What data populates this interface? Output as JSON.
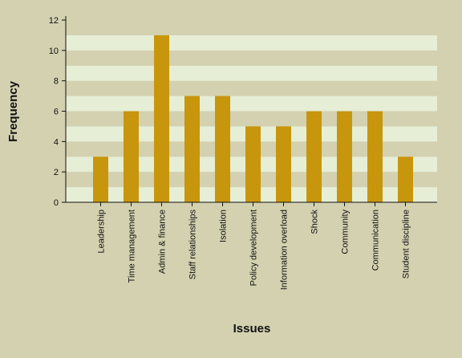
{
  "chart_data": {
    "type": "bar",
    "xlabel": "Issues",
    "ylabel": "Frequency",
    "categories": [
      "Leadership",
      "Time management",
      "Admin & finance",
      "Staff relationships",
      "Isolation",
      "Policy development",
      "Information overload",
      "Shock",
      "Community",
      "Communication",
      "Student discipline"
    ],
    "values": [
      3,
      6,
      11,
      7,
      7,
      5,
      5,
      6,
      6,
      6,
      3
    ],
    "ylim": [
      0,
      12
    ],
    "yticks": [
      0,
      2,
      4,
      6,
      8,
      10,
      12
    ],
    "grid": "horizontal bands",
    "legend": "none",
    "colors": {
      "bar": "#c8960c",
      "band_light": "#e6eed6",
      "band_dark": "#d3d1b0",
      "background": "#d3d1b0",
      "axis": "#111111"
    }
  }
}
